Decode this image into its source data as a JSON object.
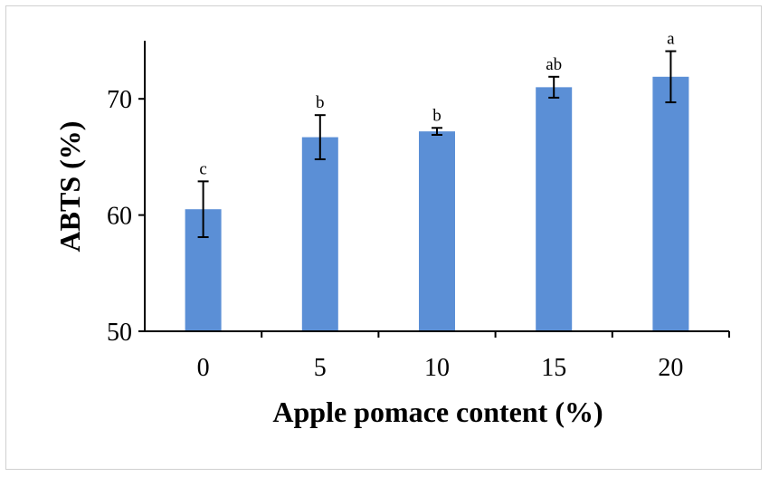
{
  "chart_data": {
    "type": "bar",
    "categories": [
      "0",
      "5",
      "10",
      "15",
      "20"
    ],
    "values": [
      60.5,
      66.7,
      67.2,
      71.0,
      71.9
    ],
    "errors": [
      2.4,
      1.9,
      0.3,
      0.9,
      2.2
    ],
    "significance_labels": [
      "c",
      "b",
      "b",
      "ab",
      "a"
    ],
    "xlabel": "Apple pomace content (%)",
    "ylabel": "ABTS (%)",
    "ylim": [
      50,
      75
    ],
    "yticks": [
      "50",
      "60",
      "70"
    ],
    "bar_color": "#5b8fd6",
    "grid": false,
    "legend": "none"
  }
}
